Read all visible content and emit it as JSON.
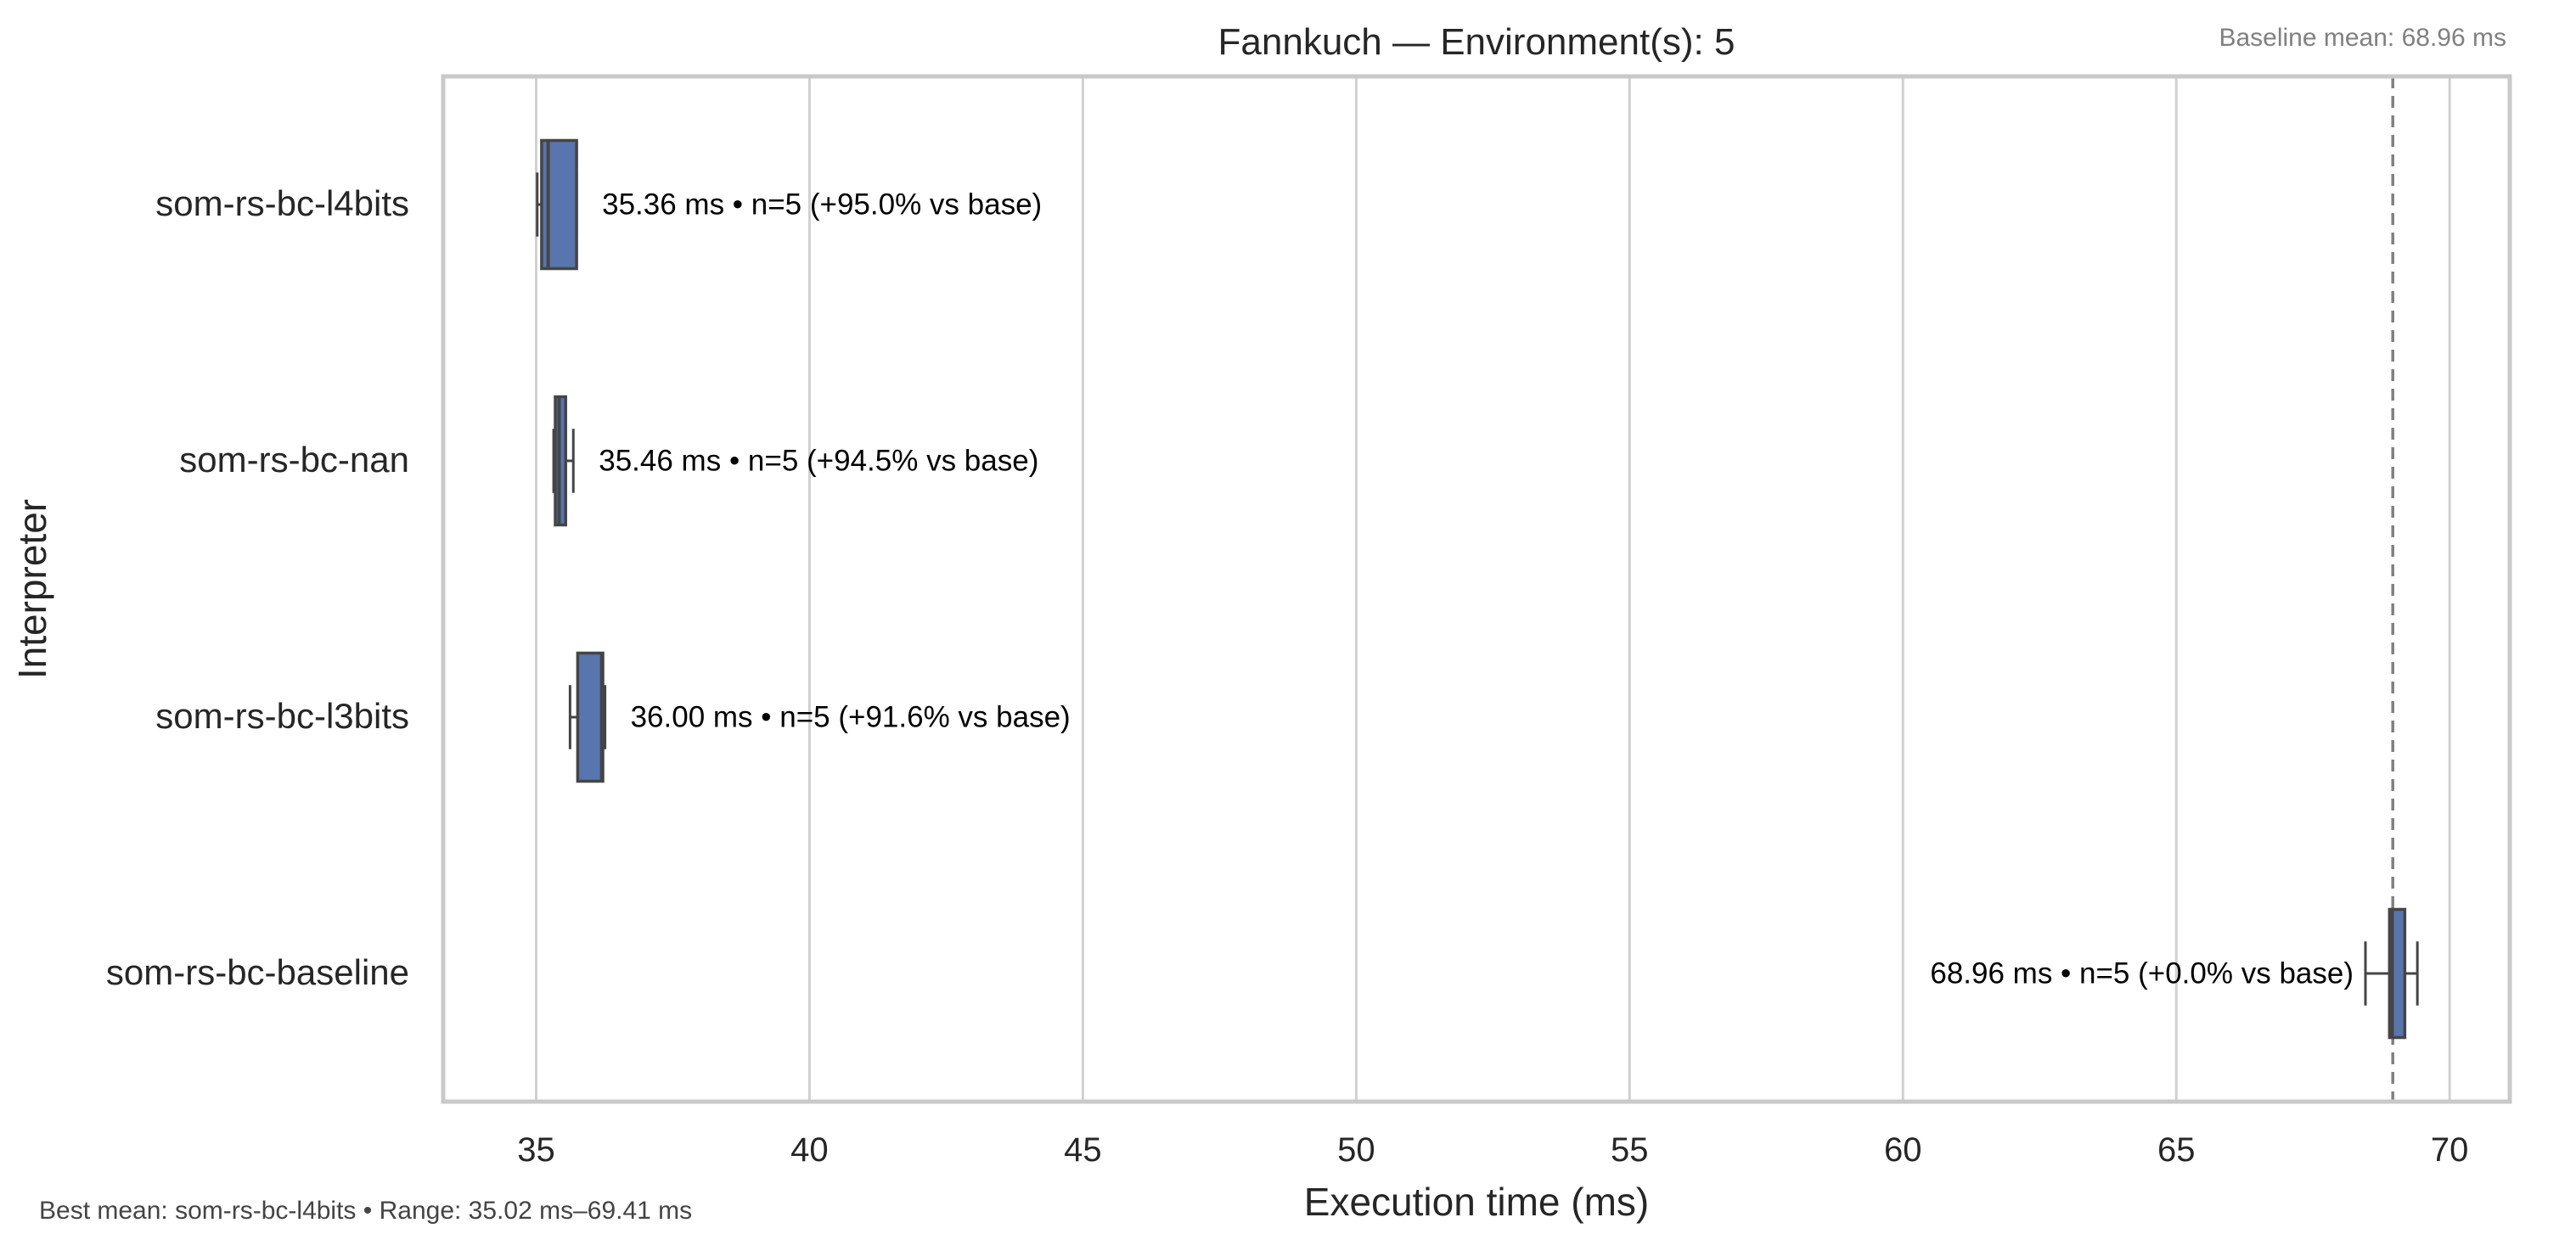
{
  "chart_data": {
    "type": "box",
    "orientation": "horizontal",
    "title": "Fannkuch — Environment(s): 5",
    "baseline_note": "Baseline mean: 68.96 ms",
    "footer_note": "Best mean: som-rs-bc-l4bits • Range: 35.02 ms–69.41 ms",
    "xlabel": "Execution time (ms)",
    "ylabel": "Interpreter",
    "xlim": [
      33.3,
      71.1
    ],
    "xticks": [
      35,
      40,
      45,
      50,
      55,
      60,
      65,
      70
    ],
    "grid": true,
    "baseline_value": 68.96,
    "colors": {
      "box_fill": "#5875ad",
      "box_edge": "#454545",
      "baseline_line": "#808080",
      "grid": "#d0d0d0"
    },
    "categories": [
      {
        "label": "som-rs-bc-l4bits",
        "whisker_low": 35.02,
        "q1": 35.1,
        "median": 35.22,
        "q3": 35.74,
        "whisker_high": 35.74,
        "mean": 35.36,
        "n": 5,
        "annotation": "35.36 ms • n=5 (+95.0% vs base)"
      },
      {
        "label": "som-rs-bc-nan",
        "whisker_low": 35.32,
        "q1": 35.35,
        "median": 35.42,
        "q3": 35.54,
        "whisker_high": 35.68,
        "mean": 35.46,
        "n": 5,
        "annotation": "35.46 ms • n=5 (+94.5% vs base)"
      },
      {
        "label": "som-rs-bc-l3bits",
        "whisker_low": 35.62,
        "q1": 35.76,
        "median": 36.2,
        "q3": 36.22,
        "whisker_high": 36.26,
        "mean": 36.0,
        "n": 5,
        "annotation": "36.00 ms • n=5 (+91.6% vs base)"
      },
      {
        "label": "som-rs-bc-baseline",
        "whisker_low": 68.46,
        "q1": 68.9,
        "median": 68.95,
        "q3": 69.18,
        "whisker_high": 69.41,
        "mean": 68.96,
        "n": 5,
        "annotation": "68.96 ms • n=5 (+0.0% vs base)"
      }
    ]
  }
}
